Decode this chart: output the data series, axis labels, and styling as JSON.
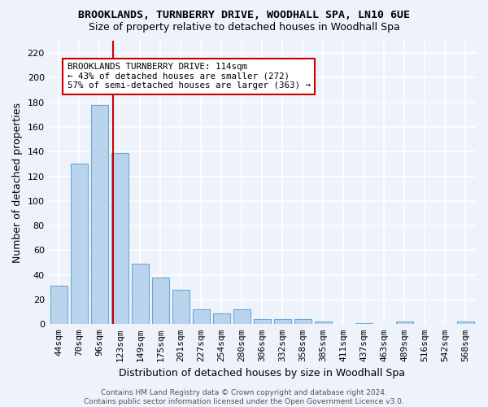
{
  "title1": "BROOKLANDS, TURNBERRY DRIVE, WOODHALL SPA, LN10 6UE",
  "title2": "Size of property relative to detached houses in Woodhall Spa",
  "xlabel": "Distribution of detached houses by size in Woodhall Spa",
  "ylabel": "Number of detached properties",
  "categories": [
    "44sqm",
    "70sqm",
    "96sqm",
    "123sqm",
    "149sqm",
    "175sqm",
    "201sqm",
    "227sqm",
    "254sqm",
    "280sqm",
    "306sqm",
    "332sqm",
    "358sqm",
    "385sqm",
    "411sqm",
    "437sqm",
    "463sqm",
    "489sqm",
    "516sqm",
    "542sqm",
    "568sqm"
  ],
  "values": [
    31,
    130,
    178,
    139,
    49,
    38,
    28,
    12,
    9,
    12,
    4,
    4,
    4,
    2,
    0,
    1,
    0,
    2,
    0,
    0,
    2
  ],
  "bar_color": "#bad4ed",
  "bar_edge_color": "#6aaad4",
  "vline_x": 2.68,
  "vline_color": "#cc0000",
  "annotation_line1": "BROOKLANDS TURNBERRY DRIVE: 114sqm",
  "annotation_line2": "← 43% of detached houses are smaller (272)",
  "annotation_line3": "57% of semi-detached houses are larger (363) →",
  "annotation_box_color": "#ffffff",
  "annotation_box_edge": "#cc0000",
  "yticks": [
    0,
    20,
    40,
    60,
    80,
    100,
    120,
    140,
    160,
    180,
    200,
    220
  ],
  "ymax": 230,
  "footer": "Contains HM Land Registry data © Crown copyright and database right 2024.\nContains public sector information licensed under the Open Government Licence v3.0.",
  "bg_color": "#edf2fb",
  "grid_color": "#ffffff",
  "title1_fontsize": 9.5,
  "title2_fontsize": 9.0,
  "annot_fontsize": 7.8,
  "xlabel_fontsize": 9.0,
  "ylabel_fontsize": 9.0,
  "tick_fontsize": 8.0,
  "footer_fontsize": 6.5
}
